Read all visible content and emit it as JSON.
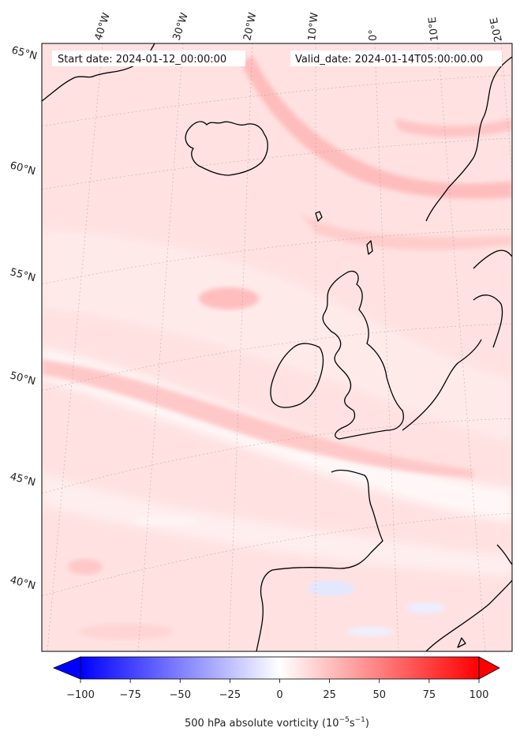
{
  "header": {
    "start_date": "Start date: 2024-01-12_00:00:00",
    "valid_date": "Valid_date: 2024-01-14T05:00:00.00"
  },
  "map": {
    "projection": "conic",
    "gridlines": "dotted",
    "lon_labels": [
      "40°W",
      "30°W",
      "20°W",
      "10°W",
      "0°",
      "10°E",
      "20°E"
    ],
    "lat_labels": [
      "65°N",
      "60°N",
      "55°N",
      "50°N",
      "45°N",
      "40°N"
    ]
  },
  "colorbar": {
    "label_prefix": "500 hPa absolute vorticity (10",
    "label_exp1": "−5",
    "label_mid": "s",
    "label_exp2": "−1",
    "label_suffix": ")",
    "min": -100,
    "max": 100,
    "ticks": [
      "−100",
      "−75",
      "−50",
      "−25",
      "0",
      "25",
      "50",
      "75",
      "100"
    ],
    "colormap": "bwr",
    "extend": "both",
    "color_low": "#0000ff",
    "color_mid": "#ffffff",
    "color_high": "#ff0000"
  }
}
